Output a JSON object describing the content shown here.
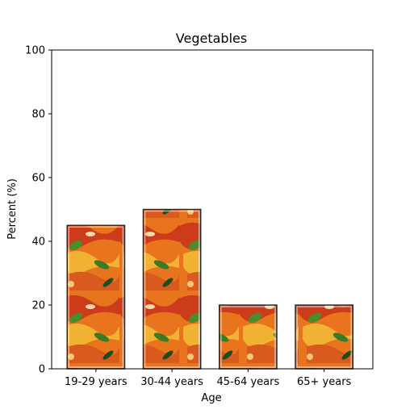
{
  "chart_data": {
    "type": "bar",
    "title": "Vegetables",
    "xlabel": "Age",
    "ylabel": "Percent (%)",
    "categories": [
      "19-29 years",
      "30-44 years",
      "45-64 years",
      "65+ years"
    ],
    "values": [
      45,
      50,
      20,
      20
    ],
    "ylim": [
      0,
      100
    ],
    "yticks": [
      "0",
      "20",
      "40",
      "60",
      "80",
      "100"
    ],
    "grid": false,
    "legend": "none",
    "bar_fill": "vegetable-photo-texture",
    "colors": {
      "veg_orange": "#e8741e",
      "veg_red": "#cc3b1a",
      "veg_yellow": "#f2b233",
      "veg_green": "#4f8a2b",
      "veg_dark_green": "#1f4d1a",
      "bar_frame": "#2b2b2b",
      "axis": "#000000"
    }
  }
}
